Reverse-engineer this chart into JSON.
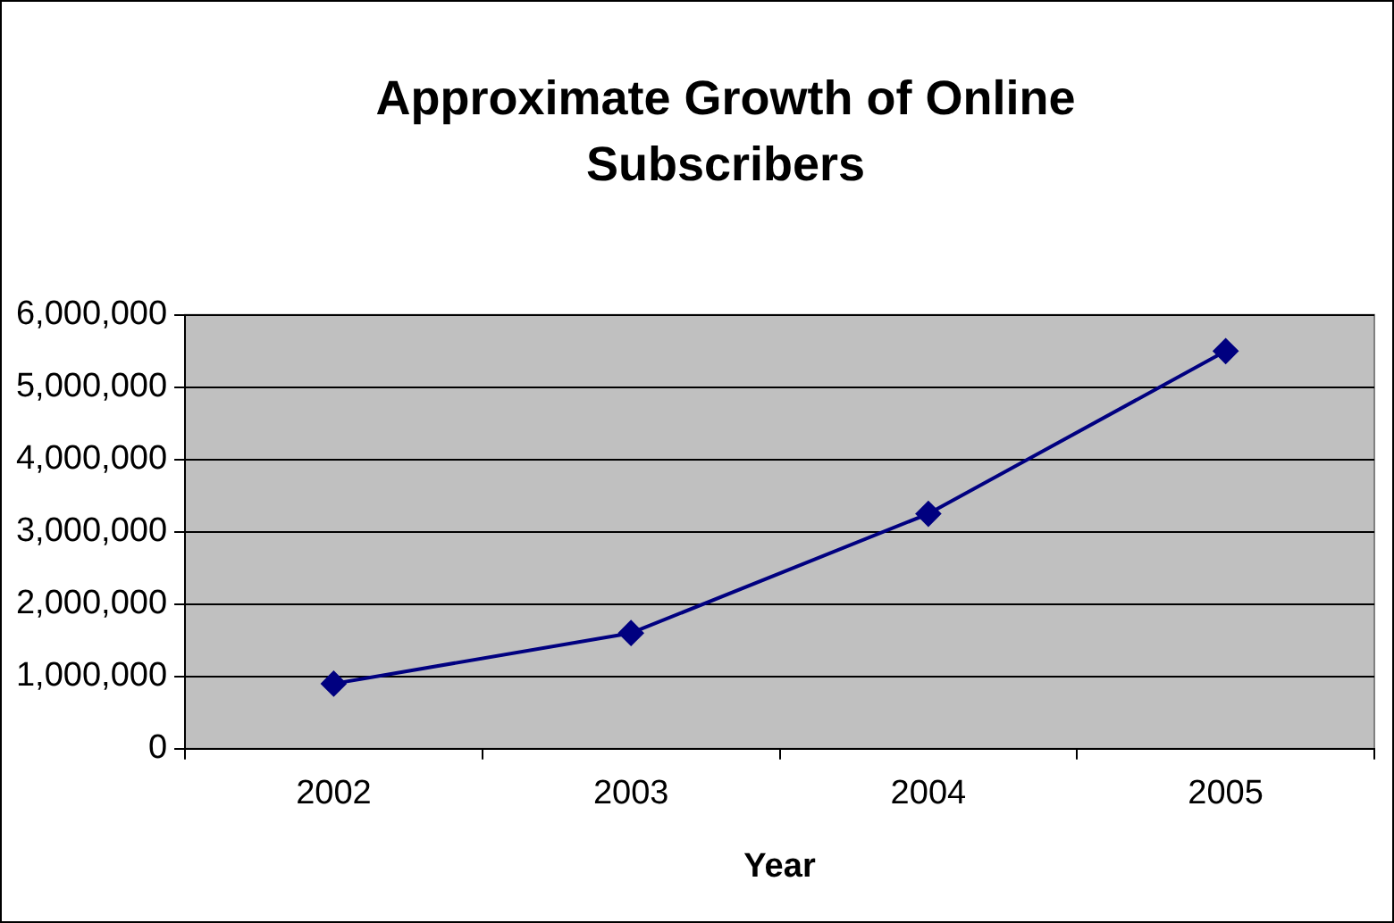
{
  "chart_data": {
    "type": "line",
    "title": "Approximate Growth of Online Subscribers",
    "xlabel": "Year",
    "categories": [
      "2002",
      "2003",
      "2004",
      "2005"
    ],
    "series": [
      {
        "color": "#000080",
        "values": [
          900000,
          1600000,
          3250000,
          5500000
        ]
      }
    ],
    "ylim": [
      0,
      6000000
    ],
    "yticks": [
      {
        "value": 0,
        "label": "0"
      },
      {
        "value": 1000000,
        "label": "1,000,000"
      },
      {
        "value": 2000000,
        "label": "2,000,000"
      },
      {
        "value": 3000000,
        "label": "3,000,000"
      },
      {
        "value": 4000000,
        "label": "4,000,000"
      },
      {
        "value": 5000000,
        "label": "5,000,000"
      },
      {
        "value": 6000000,
        "label": "6,000,000"
      }
    ],
    "grid": "y",
    "legend": false,
    "marker": "diamond",
    "line_style": "solid"
  }
}
